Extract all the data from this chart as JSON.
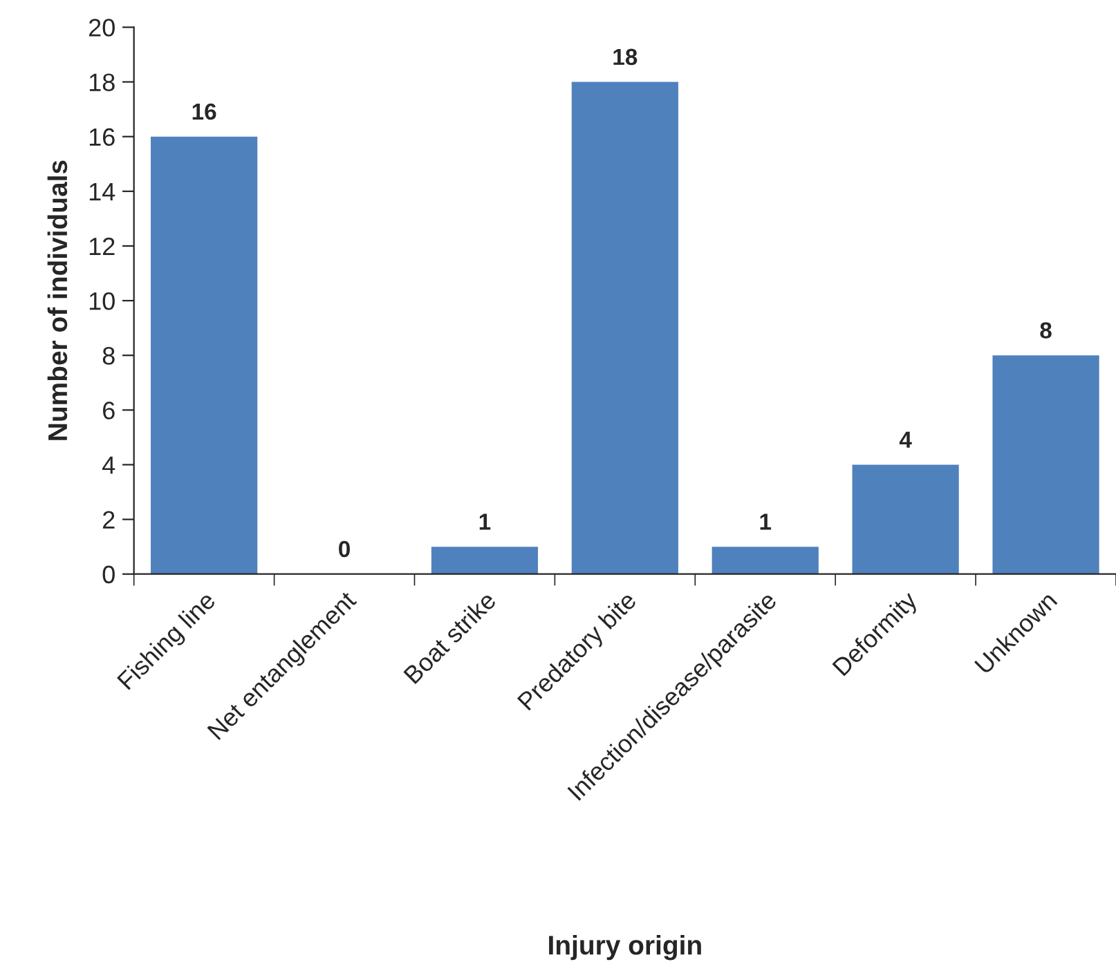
{
  "chart_data": {
    "type": "bar",
    "xlabel": "Injury origin",
    "ylabel": "Number of individuals",
    "categories": [
      "Fishing line",
      "Net entanglement",
      "Boat strike",
      "Predatory bite",
      "Infection/disease/parasite",
      "Deformity",
      "Unknown"
    ],
    "values": [
      16,
      0,
      1,
      18,
      1,
      4,
      8
    ],
    "color": "#4f81bd",
    "ylim": [
      0,
      20
    ],
    "yticks": [
      0,
      2,
      4,
      6,
      8,
      10,
      12,
      14,
      16,
      18,
      20
    ],
    "data_labels": true,
    "grid": false
  }
}
